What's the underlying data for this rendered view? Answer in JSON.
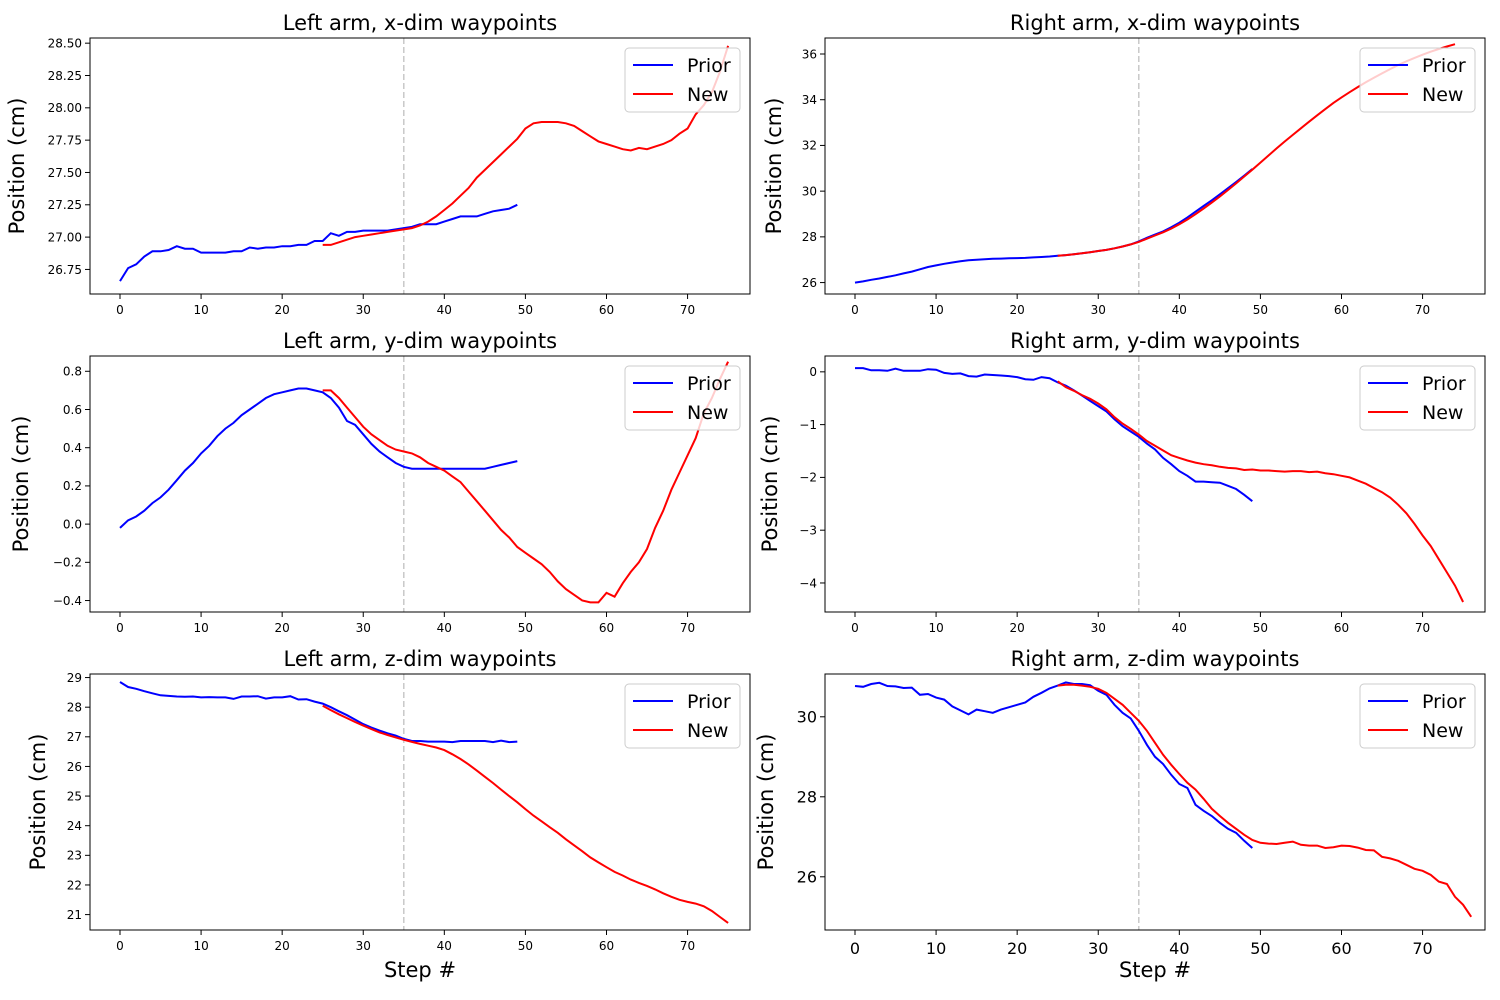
{
  "figure": {
    "legend_prior": "Prior",
    "legend_new": "New",
    "xlabel": "Step #",
    "ylabel": "Position (cm)"
  },
  "colors": {
    "prior": "#0000ff",
    "new": "#ff0000",
    "marker": "#c8c8c8"
  },
  "chart_data": [
    {
      "type": "line",
      "title": "Left arm, x-dim waypoints",
      "xlabel": "",
      "ylabel": "Position (cm)",
      "xlim": [
        -3.7,
        77.7
      ],
      "ylim": [
        26.56,
        28.54
      ],
      "xticks": [
        "0",
        "10",
        "20",
        "30",
        "40",
        "50",
        "60",
        "70"
      ],
      "yticks": [
        "26.75",
        "27.00",
        "27.25",
        "27.50",
        "27.75",
        "28.00",
        "28.25",
        "28.50"
      ],
      "vline": 35,
      "legend": "top-right",
      "series": [
        {
          "name": "Prior",
          "x0": 0,
          "values": [
            26.66,
            26.76,
            26.79,
            26.85,
            26.89,
            26.89,
            26.9,
            26.93,
            26.91,
            26.91,
            26.88,
            26.88,
            26.88,
            26.88,
            26.89,
            26.89,
            26.92,
            26.91,
            26.92,
            26.92,
            26.93,
            26.93,
            26.94,
            26.94,
            26.97,
            26.97,
            27.03,
            27.01,
            27.04,
            27.04,
            27.05,
            27.05,
            27.05,
            27.05,
            27.06,
            27.07,
            27.08,
            27.1,
            27.1,
            27.1,
            27.12,
            27.14,
            27.16,
            27.16,
            27.16,
            27.18,
            27.2,
            27.21,
            27.22,
            27.25
          ]
        },
        {
          "name": "New",
          "x0": 25,
          "values": [
            26.94,
            26.94,
            26.96,
            26.98,
            27.0,
            27.01,
            27.02,
            27.03,
            27.04,
            27.05,
            27.06,
            27.07,
            27.09,
            27.12,
            27.16,
            27.21,
            27.26,
            27.32,
            27.38,
            27.46,
            27.52,
            27.58,
            27.64,
            27.7,
            27.76,
            27.84,
            27.88,
            27.89,
            27.89,
            27.89,
            27.88,
            27.86,
            27.82,
            27.78,
            27.74,
            27.72,
            27.7,
            27.68,
            27.67,
            27.69,
            27.68,
            27.7,
            27.72,
            27.75,
            27.8,
            27.84,
            27.95,
            28.02,
            28.12,
            28.28,
            28.48
          ]
        }
      ]
    },
    {
      "type": "line",
      "title": "Right arm, x-dim waypoints",
      "xlabel": "",
      "ylabel": "Position (cm)",
      "xlim": [
        -3.7,
        77.7
      ],
      "ylim": [
        25.5,
        36.7
      ],
      "xticks": [
        "0",
        "10",
        "20",
        "30",
        "40",
        "50",
        "60",
        "70"
      ],
      "yticks": [
        "26",
        "28",
        "30",
        "32",
        "34",
        "36"
      ],
      "vline": 35,
      "legend": "top-right",
      "series": [
        {
          "name": "Prior",
          "x0": 0,
          "values": [
            26.0,
            26.05,
            26.12,
            26.18,
            26.25,
            26.32,
            26.4,
            26.48,
            26.58,
            26.68,
            26.75,
            26.82,
            26.88,
            26.93,
            26.98,
            27.0,
            27.02,
            27.04,
            27.05,
            27.06,
            27.07,
            27.08,
            27.1,
            27.12,
            27.14,
            27.17,
            27.2,
            27.24,
            27.28,
            27.33,
            27.38,
            27.43,
            27.5,
            27.58,
            27.67,
            27.8,
            27.96,
            28.1,
            28.24,
            28.42,
            28.62,
            28.85,
            29.1,
            29.35,
            29.6,
            29.86,
            30.13,
            30.4,
            30.68,
            30.97
          ]
        },
        {
          "name": "New",
          "x0": 25,
          "values": [
            27.17,
            27.2,
            27.24,
            27.28,
            27.33,
            27.38,
            27.43,
            27.5,
            27.58,
            27.67,
            27.78,
            27.92,
            28.06,
            28.2,
            28.36,
            28.55,
            28.76,
            28.99,
            29.24,
            29.5,
            29.77,
            30.05,
            30.34,
            30.64,
            30.94,
            31.25,
            31.56,
            31.87,
            32.17,
            32.46,
            32.75,
            33.04,
            33.32,
            33.59,
            33.86,
            34.1,
            34.33,
            34.55,
            34.76,
            34.96,
            35.15,
            35.34,
            35.52,
            35.68,
            35.83,
            35.97,
            36.1,
            36.22,
            36.33,
            36.43
          ]
        }
      ]
    },
    {
      "type": "line",
      "title": "Left arm, y-dim waypoints",
      "xlabel": "",
      "ylabel": "Position (cm)",
      "xlim": [
        -3.7,
        77.7
      ],
      "ylim": [
        -0.46,
        0.88
      ],
      "xticks": [
        "0",
        "10",
        "20",
        "30",
        "40",
        "50",
        "60",
        "70"
      ],
      "yticks": [
        "−0.4",
        "−0.2",
        "0.0",
        "0.2",
        "0.4",
        "0.6",
        "0.8"
      ],
      "vline": 35,
      "legend": "top-right",
      "series": [
        {
          "name": "Prior",
          "x0": 0,
          "values": [
            -0.02,
            0.02,
            0.04,
            0.07,
            0.11,
            0.14,
            0.18,
            0.23,
            0.28,
            0.32,
            0.37,
            0.41,
            0.46,
            0.5,
            0.53,
            0.57,
            0.6,
            0.63,
            0.66,
            0.68,
            0.69,
            0.7,
            0.71,
            0.71,
            0.7,
            0.69,
            0.66,
            0.61,
            0.54,
            0.52,
            0.47,
            0.42,
            0.38,
            0.35,
            0.32,
            0.3,
            0.29,
            0.29,
            0.29,
            0.29,
            0.29,
            0.29,
            0.29,
            0.29,
            0.29,
            0.29,
            0.3,
            0.31,
            0.32,
            0.33
          ]
        },
        {
          "name": "New",
          "x0": 25,
          "values": [
            0.7,
            0.7,
            0.66,
            0.61,
            0.56,
            0.51,
            0.47,
            0.44,
            0.41,
            0.39,
            0.38,
            0.37,
            0.35,
            0.32,
            0.3,
            0.28,
            0.25,
            0.22,
            0.17,
            0.12,
            0.07,
            0.02,
            -0.03,
            -0.07,
            -0.12,
            -0.15,
            -0.18,
            -0.21,
            -0.25,
            -0.3,
            -0.34,
            -0.37,
            -0.4,
            -0.41,
            -0.41,
            -0.36,
            -0.38,
            -0.31,
            -0.25,
            -0.2,
            -0.13,
            -0.02,
            0.07,
            0.18,
            0.27,
            0.36,
            0.45,
            0.58,
            0.66,
            0.76,
            0.85
          ]
        }
      ]
    },
    {
      "type": "line",
      "title": "Right arm, y-dim waypoints",
      "xlabel": "",
      "ylabel": "Position (cm)",
      "xlim": [
        -3.7,
        77.7
      ],
      "ylim": [
        -4.55,
        0.3
      ],
      "xticks": [
        "0",
        "10",
        "20",
        "30",
        "40",
        "50",
        "60",
        "70"
      ],
      "yticks": [
        "−4",
        "−3",
        "−2",
        "−1",
        "0"
      ],
      "vline": 35,
      "legend": "top-right",
      "series": [
        {
          "name": "Prior",
          "x0": 0,
          "values": [
            0.07,
            0.07,
            0.03,
            0.03,
            0.02,
            0.06,
            0.02,
            0.02,
            0.02,
            0.05,
            0.04,
            -0.02,
            -0.04,
            -0.03,
            -0.08,
            -0.09,
            -0.05,
            -0.06,
            -0.07,
            -0.08,
            -0.1,
            -0.14,
            -0.15,
            -0.1,
            -0.12,
            -0.2,
            -0.26,
            -0.35,
            -0.45,
            -0.55,
            -0.65,
            -0.75,
            -0.9,
            -1.03,
            -1.13,
            -1.23,
            -1.36,
            -1.47,
            -1.63,
            -1.75,
            -1.88,
            -1.97,
            -2.08,
            -2.08,
            -2.09,
            -2.1,
            -2.16,
            -2.22,
            -2.33,
            -2.45
          ]
        },
        {
          "name": "New",
          "x0": 25,
          "values": [
            -0.18,
            -0.29,
            -0.36,
            -0.44,
            -0.51,
            -0.6,
            -0.71,
            -0.86,
            -0.98,
            -1.08,
            -1.19,
            -1.31,
            -1.4,
            -1.49,
            -1.58,
            -1.63,
            -1.68,
            -1.72,
            -1.75,
            -1.77,
            -1.8,
            -1.82,
            -1.83,
            -1.86,
            -1.85,
            -1.87,
            -1.87,
            -1.88,
            -1.89,
            -1.88,
            -1.88,
            -1.9,
            -1.89,
            -1.92,
            -1.94,
            -1.97,
            -2.0,
            -2.06,
            -2.12,
            -2.2,
            -2.28,
            -2.38,
            -2.52,
            -2.68,
            -2.88,
            -3.1,
            -3.3,
            -3.55,
            -3.8,
            -4.05,
            -4.36
          ]
        }
      ]
    },
    {
      "type": "line",
      "title": "Left arm, z-dim waypoints",
      "xlabel": "Step #",
      "ylabel": "Position (cm)",
      "xlim": [
        -3.7,
        77.7
      ],
      "ylim": [
        20.48,
        29.12
      ],
      "xticks": [
        "0",
        "10",
        "20",
        "30",
        "40",
        "50",
        "60",
        "70"
      ],
      "yticks": [
        "21",
        "22",
        "23",
        "24",
        "25",
        "26",
        "27",
        "28",
        "29"
      ],
      "vline": 35,
      "legend": "top-right",
      "series": [
        {
          "name": "Prior",
          "x0": 0,
          "values": [
            28.85,
            28.68,
            28.62,
            28.54,
            28.47,
            28.4,
            28.38,
            28.36,
            28.35,
            28.36,
            28.33,
            28.34,
            28.33,
            28.33,
            28.28,
            28.36,
            28.36,
            28.37,
            28.29,
            28.33,
            28.33,
            28.37,
            28.26,
            28.27,
            28.19,
            28.12,
            28.0,
            27.86,
            27.73,
            27.58,
            27.43,
            27.31,
            27.21,
            27.12,
            27.04,
            26.93,
            26.86,
            26.86,
            26.84,
            26.84,
            26.84,
            26.82,
            26.86,
            26.86,
            26.86,
            26.86,
            26.82,
            26.87,
            26.82,
            26.84
          ]
        },
        {
          "name": "New",
          "x0": 25,
          "values": [
            28.05,
            27.9,
            27.76,
            27.63,
            27.5,
            27.38,
            27.26,
            27.15,
            27.06,
            26.98,
            26.9,
            26.83,
            26.76,
            26.7,
            26.64,
            26.55,
            26.41,
            26.25,
            26.07,
            25.86,
            25.65,
            25.44,
            25.22,
            25.0,
            24.79,
            24.56,
            24.34,
            24.15,
            23.95,
            23.76,
            23.54,
            23.34,
            23.14,
            22.93,
            22.76,
            22.6,
            22.44,
            22.32,
            22.18,
            22.07,
            21.97,
            21.85,
            21.72,
            21.6,
            21.5,
            21.43,
            21.37,
            21.28,
            21.12,
            20.92,
            20.72
          ]
        }
      ]
    },
    {
      "type": "line",
      "title": "Right arm, z-dim waypoints",
      "xlabel": "Step #",
      "ylabel": "Position (cm)",
      "xlim": [
        -3.7,
        77.7
      ],
      "ylim": [
        24.67,
        31.07
      ],
      "xticks": [
        "0",
        "10",
        "20",
        "30",
        "40",
        "50",
        "60",
        "70"
      ],
      "yticks": [
        "26",
        "28",
        "30"
      ],
      "vline": 35,
      "legend": "top-right",
      "series": [
        {
          "name": "Prior",
          "x0": 0,
          "values": [
            30.77,
            30.75,
            30.82,
            30.85,
            30.77,
            30.76,
            30.72,
            30.73,
            30.55,
            30.57,
            30.48,
            30.43,
            30.26,
            30.16,
            30.06,
            30.18,
            30.14,
            30.1,
            30.18,
            30.24,
            30.3,
            30.36,
            30.5,
            30.6,
            30.71,
            30.78,
            30.86,
            30.82,
            30.82,
            30.79,
            30.65,
            30.55,
            30.3,
            30.1,
            29.96,
            29.65,
            29.3,
            29.0,
            28.82,
            28.55,
            28.32,
            28.22,
            27.8,
            27.65,
            27.52,
            27.35,
            27.2,
            27.1,
            26.9,
            26.72
          ]
        },
        {
          "name": "New",
          "x0": 25,
          "values": [
            30.78,
            30.8,
            30.8,
            30.78,
            30.75,
            30.7,
            30.6,
            30.45,
            30.3,
            30.1,
            29.9,
            29.65,
            29.35,
            29.05,
            28.8,
            28.57,
            28.35,
            28.18,
            27.95,
            27.7,
            27.52,
            27.35,
            27.2,
            27.05,
            26.92,
            26.85,
            26.83,
            26.82,
            26.85,
            26.88,
            26.8,
            26.78,
            26.78,
            26.72,
            26.74,
            26.78,
            26.77,
            26.73,
            26.67,
            26.66,
            26.5,
            26.46,
            26.4,
            26.3,
            26.2,
            26.15,
            26.05,
            25.88,
            25.82,
            25.5,
            25.3,
            25.0
          ]
        }
      ]
    }
  ]
}
